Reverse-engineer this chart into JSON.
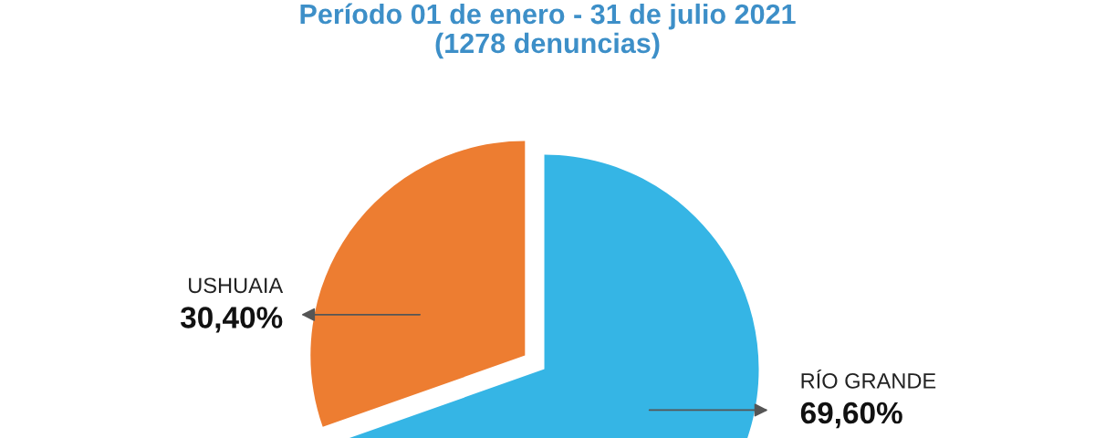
{
  "chart_data": {
    "type": "pie",
    "title": "Período 01 de enero - 31 de julio 2021",
    "subtitle": "(1278 denuncias)",
    "categories": [
      "USHUAIA",
      "RÍO GRANDE"
    ],
    "values": [
      30.4,
      69.6
    ],
    "value_labels": [
      "30,40%",
      "69,60%"
    ],
    "colors": [
      "#ed7d31",
      "#35b5e5"
    ],
    "legend": false
  }
}
